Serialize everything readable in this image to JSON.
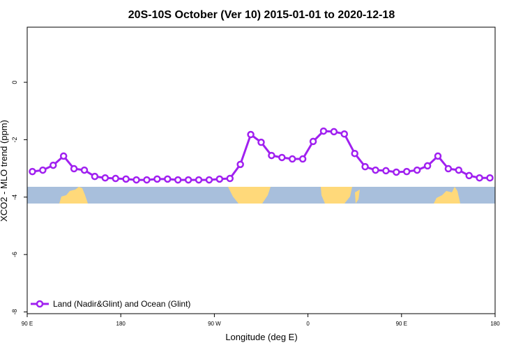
{
  "chart_data": {
    "type": "line",
    "title": "20S-10S October (Ver 10)   2015-01-01 to 2020-12-18",
    "x_label": "Longitude (deg E)",
    "y_label": "XCO2 - MLO trend (ppm)",
    "x": [
      95,
      105,
      115,
      125,
      135,
      145,
      155,
      165,
      175,
      185,
      195,
      205,
      215,
      225,
      235,
      245,
      255,
      265,
      275,
      285,
      295,
      305,
      315,
      325,
      335,
      345,
      355,
      365,
      375,
      385,
      395,
      405,
      415,
      425,
      435,
      445,
      455,
      465,
      475,
      485,
      495,
      505,
      515,
      525,
      535
    ],
    "series": [
      {
        "name": "Land (Nadir&Glint) and Ocean (Glint)",
        "color": "#a020f0",
        "values": [
          -3.11,
          -3.06,
          -2.89,
          -2.57,
          -3.01,
          -3.06,
          -3.28,
          -3.33,
          -3.35,
          -3.37,
          -3.4,
          -3.4,
          -3.37,
          -3.37,
          -3.4,
          -3.4,
          -3.4,
          -3.4,
          -3.37,
          -3.35,
          -2.86,
          -1.82,
          -2.09,
          -2.55,
          -2.62,
          -2.67,
          -2.67,
          -2.06,
          -1.7,
          -1.72,
          -1.8,
          -2.48,
          -2.94,
          -3.06,
          -3.08,
          -3.13,
          -3.11,
          -3.06,
          -2.91,
          -2.57,
          -3.01,
          -3.06,
          -3.25,
          -3.33,
          -3.33
        ]
      }
    ],
    "xlim": [
      90,
      540
    ],
    "xticks": [
      {
        "value": 90,
        "label": "90 E"
      },
      180,
      {
        "value": 270,
        "label": "90 W"
      },
      {
        "value": 360,
        "label": "0"
      },
      {
        "value": 450,
        "label": "90 E"
      },
      {
        "value": 540,
        "label": "180"
      }
    ],
    "ylim": [
      -8.06,
      1.92
    ],
    "yticks": [
      0,
      -2,
      -4,
      -6,
      -8
    ],
    "legend": "bottom-left"
  }
}
